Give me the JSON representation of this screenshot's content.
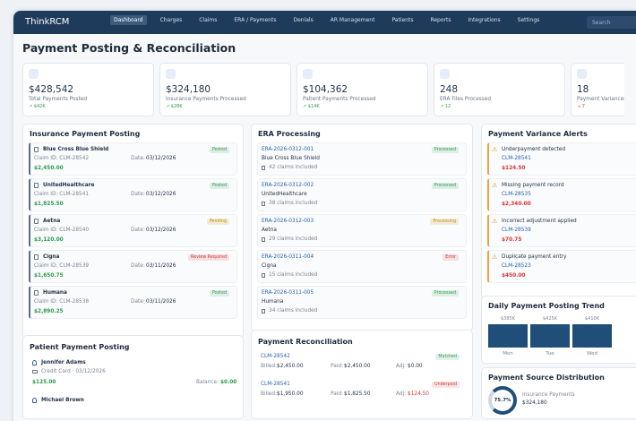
{
  "nav": {
    "brand": "ThinkRCM",
    "items": [
      "Dashboard",
      "Charges",
      "Claims",
      "ERA / Payments",
      "Denials",
      "AR Management",
      "Patients",
      "Reports",
      "Integrations",
      "Settings"
    ],
    "search": "Search"
  },
  "page_title": "Payment Posting & Reconciliation",
  "stats": [
    {
      "value": "$428,542",
      "label": "Total Payments Posted",
      "delta": "↗ $42K",
      "color": "#2e9b4f"
    },
    {
      "value": "$324,180",
      "label": "Insurance Payments Processed",
      "delta": "↗ $28K",
      "color": "#2e9b4f"
    },
    {
      "value": "$104,362",
      "label": "Patient Payments Processed",
      "delta": "↗ $14K",
      "color": "#2e9b4f"
    },
    {
      "value": "248",
      "label": "ERA Files Processed",
      "delta": "↗ 12",
      "color": "#2e9b4f"
    },
    {
      "value": "18",
      "label": "Payment Variances Detected",
      "delta": "↘ 7",
      "color": "#d93636"
    }
  ],
  "insurance": {
    "title": "Insurance Payment Posting",
    "items": [
      {
        "payer": "Blue Cross Blue Shield",
        "claim": "Claim ID: CLM-28542",
        "date_label": "Date:",
        "date": "03/12/2026",
        "status": "Posted",
        "status_color": "#2e9b4f",
        "amount": "$2,450.00"
      },
      {
        "payer": "UnitedHealthcare",
        "claim": "Claim ID: CLM-28541",
        "date_label": "Date:",
        "date": "03/12/2026",
        "status": "Posted",
        "status_color": "#2e9b4f",
        "amount": "$1,825.50"
      },
      {
        "payer": "Aetna",
        "claim": "Claim ID: CLM-28540",
        "date_label": "Date:",
        "date": "03/12/2026",
        "status": "Pending",
        "status_color": "#c48a00",
        "amount": "$3,120.00"
      },
      {
        "payer": "Cigna",
        "claim": "Claim ID: CLM-28539",
        "date_label": "Date:",
        "date": "03/11/2026",
        "status": "Review Required",
        "status_color": "#d93636",
        "amount": "$1,650.75"
      },
      {
        "payer": "Humana",
        "claim": "Claim ID: CLM-28538",
        "date_label": "Date:",
        "date": "03/11/2026",
        "status": "Posted",
        "status_color": "#2e9b4f",
        "amount": "$2,890.25"
      }
    ]
  },
  "era": {
    "title": "ERA Processing",
    "items": [
      {
        "id": "ERA-2026-0312-001",
        "payer": "Blue Cross Blue Shield",
        "claims": "42 claims included",
        "status": "Processed",
        "status_color": "#2e9b4f"
      },
      {
        "id": "ERA-2026-0312-002",
        "payer": "UnitedHealthcare",
        "claims": "38 claims included",
        "status": "Processed",
        "status_color": "#2e9b4f"
      },
      {
        "id": "ERA-2026-0312-003",
        "payer": "Aetna",
        "claims": "29 claims included",
        "status": "Processing",
        "status_color": "#c48a00"
      },
      {
        "id": "ERA-2026-0311-004",
        "payer": "Cigna",
        "claims": "15 claims included",
        "status": "Error",
        "status_color": "#d93636"
      },
      {
        "id": "ERA-2026-0311-005",
        "payer": "Humana",
        "claims": "34 claims included",
        "status": "Processed",
        "status_color": "#2e9b4f"
      }
    ]
  },
  "variance": {
    "title": "Payment Variance Alerts",
    "items": [
      {
        "title": "Underpayment detected",
        "claim": "CLM-28541",
        "amount": "$124.50"
      },
      {
        "title": "Missing payment record",
        "claim": "CLM-28535",
        "amount": "$2,340.00"
      },
      {
        "title": "Incorrect adjustment applied",
        "claim": "CLM-28539",
        "amount": "$70.75"
      },
      {
        "title": "Duplicate payment entry",
        "claim": "CLM-28523",
        "amount": "$450.00"
      }
    ]
  },
  "patient": {
    "title": "Patient Payment Posting",
    "items": [
      {
        "name": "Jennifer Adams",
        "method": "Credit Card  ·  03/12/2026",
        "amount": "$125.00",
        "balance_label": "Balance:",
        "balance": "$0.00"
      },
      {
        "name": "Michael Brown"
      }
    ]
  },
  "reconciliation": {
    "title": "Payment Reconciliation",
    "items": [
      {
        "claim": "CLM-28542",
        "status": "Matched",
        "status_color": "#2e9b4f",
        "billed_label": "Billed:",
        "billed": "$2,450.00",
        "paid_label": "Paid:",
        "paid": "$2,450.00",
        "adj_label": "Adj:",
        "adj": "$0.00"
      },
      {
        "claim": "CLM-28541",
        "status": "Underpaid",
        "status_color": "#d93636",
        "billed_label": "Billed:",
        "billed": "$1,950.00",
        "paid_label": "Paid:",
        "paid": "$1,825.50",
        "adj_label": "Adj:",
        "adj": "$124.50"
      }
    ]
  },
  "trend": {
    "title": "Daily Payment Posting Trend",
    "items": [
      {
        "value": "$385K",
        "day": "Mon"
      },
      {
        "value": "$425K",
        "day": "Tue"
      },
      {
        "value": "$410K",
        "day": "Wed"
      }
    ]
  },
  "source": {
    "title": "Payment Source Distribution",
    "percent": "75.7%",
    "label": "Insurance Payments",
    "amount": "$324,180"
  }
}
